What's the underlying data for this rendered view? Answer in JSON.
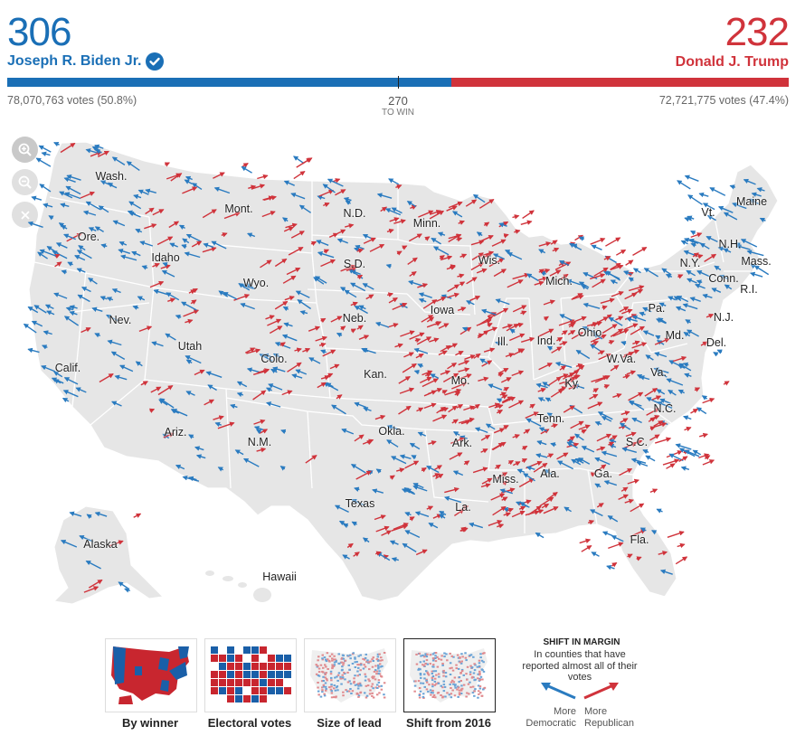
{
  "header": {
    "dem": {
      "ev": "306",
      "name": "Joseph R. Biden Jr.",
      "votes": "78,070,763 votes (50.8%)",
      "color": "#1a6fb6",
      "popular_pct": 50.8,
      "ev_value": 306,
      "winner_check": "check-circle-icon"
    },
    "rep": {
      "ev": "232",
      "name": "Donald J. Trump",
      "votes": "72,721,775 votes (47.4%)",
      "color": "#d0333b",
      "popular_pct": 47.4,
      "ev_value": 232
    },
    "threshold": {
      "value": "270",
      "label": "TO WIN"
    }
  },
  "zoom": {
    "zoom_in": "zoom-in-icon",
    "zoom_out": "zoom-out-icon",
    "reset": "close-icon"
  },
  "map": {
    "land_color": "#e6e6e6",
    "border_color": "#ffffff",
    "states": [
      "Wash.",
      "Ore.",
      "Idaho",
      "Mont.",
      "Wyo.",
      "Nev.",
      "Calif.",
      "Utah",
      "Colo.",
      "Ariz.",
      "N.M.",
      "N.D.",
      "S.D.",
      "Neb.",
      "Kan.",
      "Okla.",
      "Texas",
      "Minn.",
      "Iowa",
      "Mo.",
      "Ark.",
      "La.",
      "Wis.",
      "Ill.",
      "Mich.",
      "Ind.",
      "Ohio",
      "Ky.",
      "Tenn.",
      "Miss.",
      "Ala.",
      "Ga.",
      "Fla.",
      "S.C.",
      "N.C.",
      "Va.",
      "W.Va.",
      "Pa.",
      "N.Y.",
      "Md.",
      "Del.",
      "N.J.",
      "Conn.",
      "R.I.",
      "Mass.",
      "Vt.",
      "N.H.",
      "Maine",
      "Alaska",
      "Hawaii"
    ]
  },
  "views": [
    {
      "label": "By winner",
      "icon": "map-by-winner-thumbnail"
    },
    {
      "label": "Electoral votes",
      "icon": "map-electoral-votes-thumbnail"
    },
    {
      "label": "Size of lead",
      "icon": "map-size-of-lead-thumbnail"
    },
    {
      "label": "Shift from 2016",
      "icon": "map-shift-thumbnail",
      "selected": true
    }
  ],
  "legend": {
    "title": "SHIFT IN MARGIN",
    "subtitle": "In counties that have reported almost all of their votes",
    "dem_label_1": "More",
    "dem_label_2": "Democratic",
    "rep_label_1": "More",
    "rep_label_2": "Republican"
  }
}
